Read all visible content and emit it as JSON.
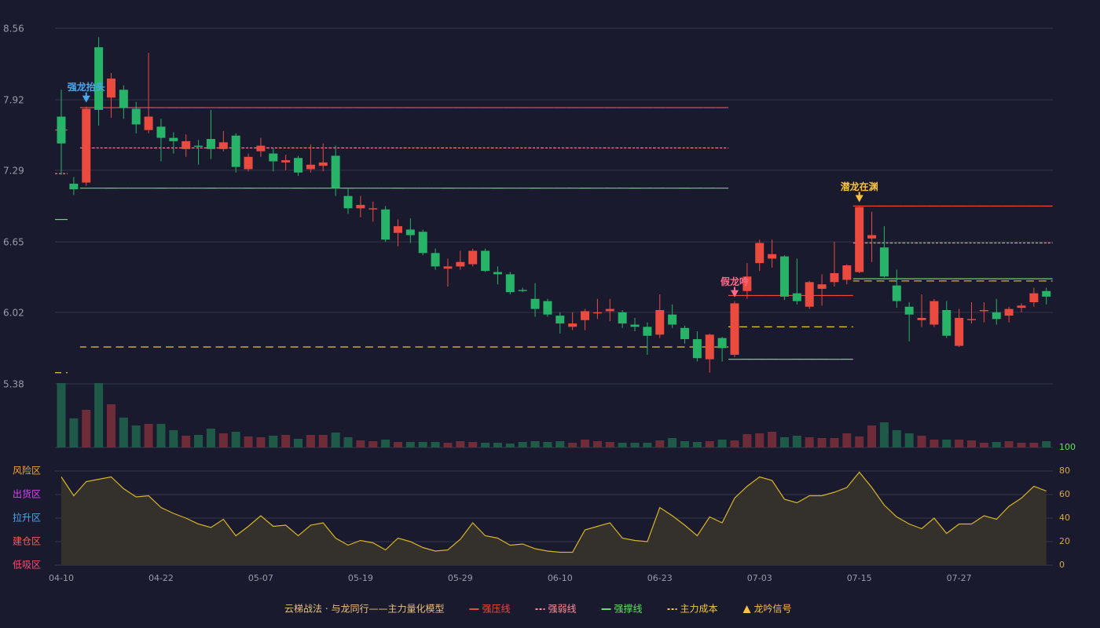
{
  "chart_data": {
    "type": "candlestick",
    "categories": [
      "04-10",
      null,
      null,
      null,
      null,
      null,
      null,
      null,
      "04-22",
      null,
      null,
      null,
      null,
      null,
      null,
      null,
      "05-07",
      null,
      null,
      null,
      null,
      null,
      null,
      null,
      "05-19",
      null,
      null,
      null,
      null,
      null,
      null,
      null,
      "05-29",
      null,
      null,
      null,
      null,
      null,
      null,
      null,
      "06-10",
      null,
      null,
      null,
      null,
      null,
      null,
      null,
      "06-23",
      null,
      null,
      null,
      null,
      null,
      null,
      null,
      "07-03",
      null,
      null,
      null,
      null,
      null,
      null,
      null,
      "07-15",
      null,
      null,
      null,
      null,
      null,
      null,
      null,
      "07-27",
      null,
      null,
      null,
      null,
      null,
      null,
      null
    ],
    "open": [
      7.77,
      7.17,
      7.18,
      8.39,
      7.94,
      8.01,
      7.84,
      7.65,
      7.68,
      7.58,
      7.48,
      7.51,
      7.57,
      7.48,
      7.6,
      7.3,
      7.46,
      7.44,
      7.36,
      7.4,
      7.3,
      7.33,
      7.42,
      7.06,
      6.95,
      6.94,
      6.94,
      6.73,
      6.76,
      6.74,
      6.55,
      6.41,
      6.43,
      6.45,
      6.57,
      6.38,
      6.36,
      6.22,
      6.14,
      6.12,
      5.99,
      5.89,
      5.95,
      6.01,
      6.03,
      6.02,
      5.91,
      5.89,
      5.82,
      6.0,
      5.88,
      5.78,
      5.6,
      5.79,
      5.64,
      6.21,
      6.46,
      6.5,
      6.52,
      6.19,
      6.07,
      6.23,
      6.29,
      6.31,
      6.38,
      6.68,
      6.6,
      6.26,
      6.07,
      5.95,
      5.91,
      6.04,
      5.72,
      5.95,
      6.03,
      6.02,
      5.99,
      6.06,
      6.11,
      6.21
    ],
    "high": [
      8.01,
      7.23,
      7.86,
      8.48,
      8.16,
      8.05,
      7.9,
      8.34,
      7.75,
      7.63,
      7.61,
      7.56,
      7.83,
      7.64,
      7.62,
      7.44,
      7.58,
      7.49,
      7.43,
      7.42,
      7.52,
      7.53,
      7.51,
      7.13,
      7.06,
      7.01,
      6.97,
      6.85,
      6.86,
      6.76,
      6.59,
      6.5,
      6.57,
      6.59,
      6.59,
      6.43,
      6.38,
      6.24,
      6.28,
      6.14,
      6.02,
      6.02,
      6.05,
      6.14,
      6.14,
      6.04,
      5.97,
      5.93,
      6.18,
      6.09,
      5.9,
      5.85,
      5.83,
      5.8,
      6.12,
      6.46,
      6.67,
      6.67,
      6.53,
      6.5,
      6.3,
      6.36,
      6.65,
      6.45,
      6.97,
      6.92,
      6.79,
      6.4,
      6.11,
      6.18,
      6.14,
      6.12,
      6.05,
      6.11,
      6.11,
      6.14,
      6.07,
      6.1,
      6.24,
      6.24
    ],
    "low": [
      7.25,
      7.07,
      7.15,
      7.69,
      7.76,
      7.75,
      7.62,
      7.62,
      7.37,
      7.44,
      7.41,
      7.34,
      7.39,
      7.46,
      7.27,
      7.28,
      7.41,
      7.28,
      7.29,
      7.24,
      7.27,
      7.28,
      7.06,
      6.9,
      6.87,
      6.83,
      6.65,
      6.61,
      6.64,
      6.53,
      6.4,
      6.25,
      6.4,
      6.43,
      6.38,
      6.27,
      6.18,
      6.2,
      5.98,
      5.98,
      5.83,
      5.86,
      5.86,
      5.96,
      5.94,
      5.88,
      5.85,
      5.64,
      5.79,
      5.88,
      5.74,
      5.58,
      5.48,
      5.58,
      5.62,
      6.14,
      6.39,
      6.42,
      6.13,
      6.09,
      6.05,
      6.08,
      6.25,
      6.27,
      6.37,
      6.47,
      6.33,
      6.06,
      5.76,
      5.89,
      5.89,
      5.79,
      5.71,
      5.92,
      5.93,
      5.91,
      5.93,
      6.02,
      6.07,
      6.09
    ],
    "close": [
      7.53,
      7.12,
      7.84,
      7.83,
      8.11,
      7.85,
      7.7,
      7.77,
      7.58,
      7.55,
      7.55,
      7.5,
      7.48,
      7.54,
      7.32,
      7.41,
      7.51,
      7.37,
      7.38,
      7.27,
      7.34,
      7.36,
      7.13,
      6.95,
      6.98,
      6.95,
      6.67,
      6.79,
      6.71,
      6.55,
      6.43,
      6.43,
      6.47,
      6.57,
      6.39,
      6.36,
      6.2,
      6.21,
      6.05,
      6.0,
      5.92,
      5.92,
      6.03,
      6.02,
      6.05,
      5.92,
      5.89,
      5.81,
      6.04,
      5.91,
      5.78,
      5.61,
      5.82,
      5.7,
      6.1,
      6.34,
      6.64,
      6.54,
      6.16,
      6.12,
      6.29,
      6.27,
      6.37,
      6.44,
      6.96,
      6.71,
      6.34,
      6.12,
      6.0,
      5.97,
      6.12,
      5.81,
      5.97,
      5.96,
      6.04,
      5.96,
      6.05,
      6.08,
      6.19,
      6.16
    ],
    "up_color": "#eb4a3f",
    "down_color": "#27b368",
    "ylim": [
      5.38,
      8.56
    ],
    "yticks": [
      5.38,
      6.02,
      6.65,
      7.29,
      7.92,
      8.56
    ],
    "grid": true,
    "series": [
      {
        "name": "强压线",
        "color": "#eb4a3f",
        "dash": "none",
        "values": [
          7.65,
          null,
          7.85,
          7.85,
          7.85,
          7.85,
          7.85,
          7.85,
          7.85,
          7.85,
          7.85,
          7.85,
          7.85,
          7.85,
          7.85,
          7.85,
          7.85,
          7.85,
          7.85,
          7.85,
          7.85,
          7.85,
          7.85,
          7.85,
          7.85,
          7.85,
          7.85,
          7.85,
          7.85,
          7.85,
          7.85,
          7.85,
          7.85,
          7.85,
          7.85,
          7.85,
          7.85,
          7.85,
          7.85,
          7.85,
          7.85,
          7.85,
          7.85,
          7.85,
          7.85,
          7.85,
          7.85,
          7.85,
          7.85,
          7.85,
          7.85,
          7.85,
          7.85,
          7.85,
          6.17,
          6.17,
          6.17,
          6.17,
          6.17,
          6.17,
          6.17,
          6.17,
          6.17,
          6.17,
          6.97,
          6.97,
          6.97,
          6.97,
          6.97,
          6.97,
          6.97,
          6.97,
          6.97,
          6.97,
          6.97,
          6.97,
          6.97,
          6.97,
          6.97,
          6.97
        ]
      },
      {
        "name": "强弱线",
        "color": "#ff8f9c",
        "dash": "3 2",
        "values": [
          7.26,
          null,
          7.49,
          7.49,
          7.49,
          7.49,
          7.49,
          7.49,
          7.49,
          7.49,
          7.49,
          7.49,
          7.49,
          7.49,
          7.49,
          7.49,
          7.49,
          7.49,
          7.49,
          7.49,
          7.49,
          7.49,
          7.49,
          7.49,
          7.49,
          7.49,
          7.49,
          7.49,
          7.49,
          7.49,
          7.49,
          7.49,
          7.49,
          7.49,
          7.49,
          7.49,
          7.49,
          7.49,
          7.49,
          7.49,
          7.49,
          7.49,
          7.49,
          7.49,
          7.49,
          7.49,
          7.49,
          7.49,
          7.49,
          7.49,
          7.49,
          7.49,
          7.49,
          7.49,
          null,
          null,
          null,
          null,
          null,
          null,
          null,
          null,
          null,
          null,
          6.64,
          6.64,
          6.64,
          6.64,
          6.64,
          6.64,
          6.64,
          6.64,
          6.64,
          6.64,
          6.64,
          6.64,
          6.64,
          6.64,
          6.64,
          6.64
        ]
      },
      {
        "name": "强撑线",
        "color": "#5fe35f",
        "dash": "none",
        "values": [
          6.85,
          null,
          7.13,
          7.13,
          7.13,
          7.13,
          7.13,
          7.13,
          7.13,
          7.13,
          7.13,
          7.13,
          7.13,
          7.13,
          7.13,
          7.13,
          7.13,
          7.13,
          7.13,
          7.13,
          7.13,
          7.13,
          7.13,
          7.13,
          7.13,
          7.13,
          7.13,
          7.13,
          7.13,
          7.13,
          7.13,
          7.13,
          7.13,
          7.13,
          7.13,
          7.13,
          7.13,
          7.13,
          7.13,
          7.13,
          7.13,
          7.13,
          7.13,
          7.13,
          7.13,
          7.13,
          7.13,
          7.13,
          7.13,
          7.13,
          7.13,
          7.13,
          7.13,
          7.13,
          5.6,
          5.6,
          5.6,
          5.6,
          5.6,
          5.6,
          5.6,
          5.6,
          5.6,
          5.6,
          6.32,
          6.32,
          6.32,
          6.32,
          6.32,
          6.32,
          6.32,
          6.32,
          6.32,
          6.32,
          6.32,
          6.32,
          6.32,
          6.32,
          6.32,
          6.32
        ]
      },
      {
        "name": "主力成本",
        "color": "#f2c832",
        "dash": "8 6",
        "values": [
          5.48,
          null,
          5.71,
          5.71,
          5.71,
          5.71,
          5.71,
          5.71,
          5.71,
          5.71,
          5.71,
          5.71,
          5.71,
          5.71,
          5.71,
          5.71,
          5.71,
          5.71,
          5.71,
          5.71,
          5.71,
          5.71,
          5.71,
          5.71,
          5.71,
          5.71,
          5.71,
          5.71,
          5.71,
          5.71,
          5.71,
          5.71,
          5.71,
          5.71,
          5.71,
          5.71,
          5.71,
          5.71,
          5.71,
          5.71,
          5.71,
          5.71,
          5.71,
          5.71,
          5.71,
          5.71,
          5.71,
          5.71,
          5.71,
          5.71,
          5.71,
          5.71,
          5.71,
          5.71,
          5.89,
          5.89,
          5.89,
          5.89,
          5.89,
          5.89,
          5.89,
          5.89,
          5.89,
          5.89,
          6.3,
          6.3,
          6.3,
          6.3,
          6.3,
          6.3,
          6.3,
          6.3,
          6.3,
          6.3,
          6.3,
          6.3,
          6.3,
          6.3,
          6.3,
          6.3
        ]
      }
    ],
    "signal": {
      "name": "龙吟信号",
      "color": "#f5c242"
    },
    "annotations": [
      {
        "text": "强龙抬头",
        "color": "#4aa8f0",
        "at": 2
      },
      {
        "text": "假龙吟",
        "color": "#ff6b8a",
        "at": 54
      },
      {
        "text": "潜龙在渊",
        "color": "#f5c242",
        "at": 64
      }
    ],
    "legend_title": "云梯战法 · 与龙同行——主力量化模型",
    "volume": {
      "type": "bar",
      "ylim": [
        0,
        82
      ],
      "up_color": "#6e2c38",
      "down_color": "#1f5a48",
      "values": [
        82,
        37,
        48,
        82,
        55,
        38,
        28,
        30,
        30,
        22,
        15,
        16,
        24,
        18,
        20,
        14,
        13,
        15,
        16,
        11,
        16,
        16,
        19,
        13,
        9,
        8,
        10,
        7,
        7,
        7,
        7,
        6,
        8,
        7,
        6,
        6,
        5,
        7,
        8,
        7,
        8,
        6,
        10,
        8,
        7,
        6,
        6,
        6,
        9,
        12,
        8,
        7,
        8,
        10,
        9,
        17,
        18,
        20,
        13,
        15,
        13,
        12,
        12,
        18,
        14,
        28,
        32,
        22,
        18,
        15,
        10,
        10,
        10,
        9,
        6,
        7,
        8,
        6,
        6,
        8
      ]
    },
    "oscillator": {
      "type": "area",
      "color": "#d9b526",
      "fill": "#34302c",
      "ylim": [
        0,
        100
      ],
      "values": [
        75,
        59,
        71,
        73,
        75,
        65,
        58,
        59,
        49,
        44,
        40,
        35,
        32,
        39,
        25,
        33,
        42,
        33,
        34,
        25,
        34,
        36,
        23,
        17,
        21,
        19,
        13,
        23,
        20,
        15,
        12,
        13,
        22,
        36,
        25,
        23,
        17,
        18,
        14,
        12,
        11,
        11,
        30,
        33,
        36,
        23,
        21,
        20,
        49,
        42,
        34,
        25,
        41,
        36,
        57,
        67,
        75,
        72,
        56,
        53,
        59,
        59,
        62,
        66,
        79,
        66,
        51,
        41,
        35,
        31,
        40,
        27,
        35,
        35,
        42,
        39,
        50,
        57,
        67,
        63
      ],
      "yticks": [
        {
          "value": 80,
          "label": "风险区",
          "color": "#f5a623"
        },
        {
          "value": 60,
          "label": "出货区",
          "color": "#e040fb"
        },
        {
          "value": 40,
          "label": "拉升区",
          "color": "#4aa8f0"
        },
        {
          "value": 20,
          "label": "建仓区",
          "color": "#ff5a5a"
        },
        {
          "value": 0,
          "label": "低吸区",
          "color": "#ff4d6d"
        }
      ],
      "y2ticks": [
        0,
        20,
        40,
        60,
        80,
        100
      ],
      "y2tick_colors": [
        "#d9a84a",
        "#d9a84a",
        "#d9a84a",
        "#d9a84a",
        "#d9a84a",
        "#5ce65c"
      ]
    }
  }
}
